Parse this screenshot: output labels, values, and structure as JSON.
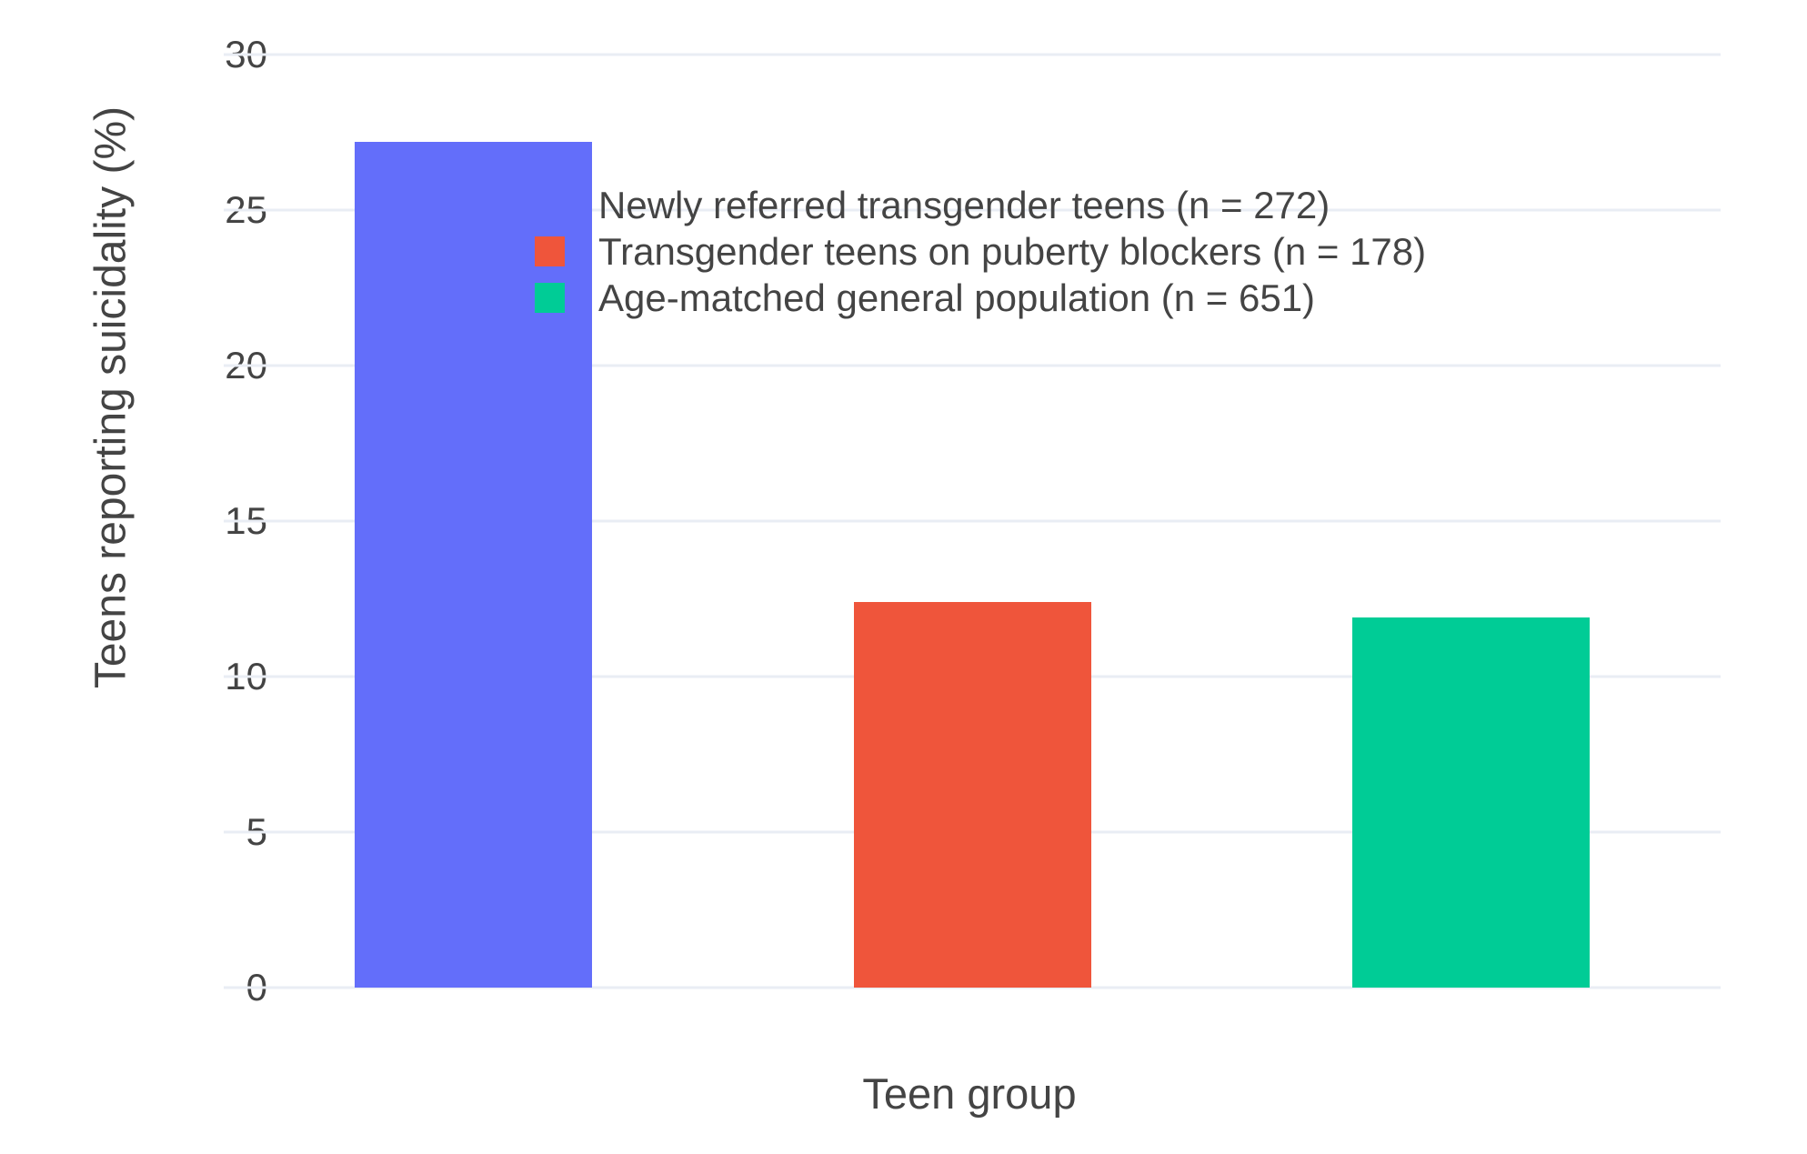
{
  "chart_data": {
    "type": "bar",
    "categories": [
      "Newly referred transgender teens",
      "Transgender teens on puberty blockers",
      "Age-matched general population"
    ],
    "values": [
      27.2,
      12.4,
      11.9
    ],
    "bar_colors": [
      "#636EFA",
      "#EF553B",
      "#00CC96"
    ],
    "title": "",
    "xlabel": "Teen group",
    "ylabel": "Teens reporting suicidality (%)",
    "ylim": [
      0,
      30
    ],
    "yticks": [
      0,
      5,
      10,
      15,
      20,
      25,
      30
    ],
    "grid": true,
    "legend_position": "inside-top-center",
    "legend": [
      {
        "label": "Newly referred transgender teens (n = 272)",
        "color": "#636EFA"
      },
      {
        "label": "Transgender teens on puberty blockers (n = 178)",
        "color": "#EF553B"
      },
      {
        "label": "Age-matched general population (n = 651)",
        "color": "#00CC96"
      }
    ]
  },
  "axes": {
    "y_title": "Teens reporting suicidality (%)",
    "x_title": "Teen group"
  },
  "colors": {
    "background": "#FFFFFF",
    "gridline": "#E9EDF4",
    "text": "#444444"
  }
}
